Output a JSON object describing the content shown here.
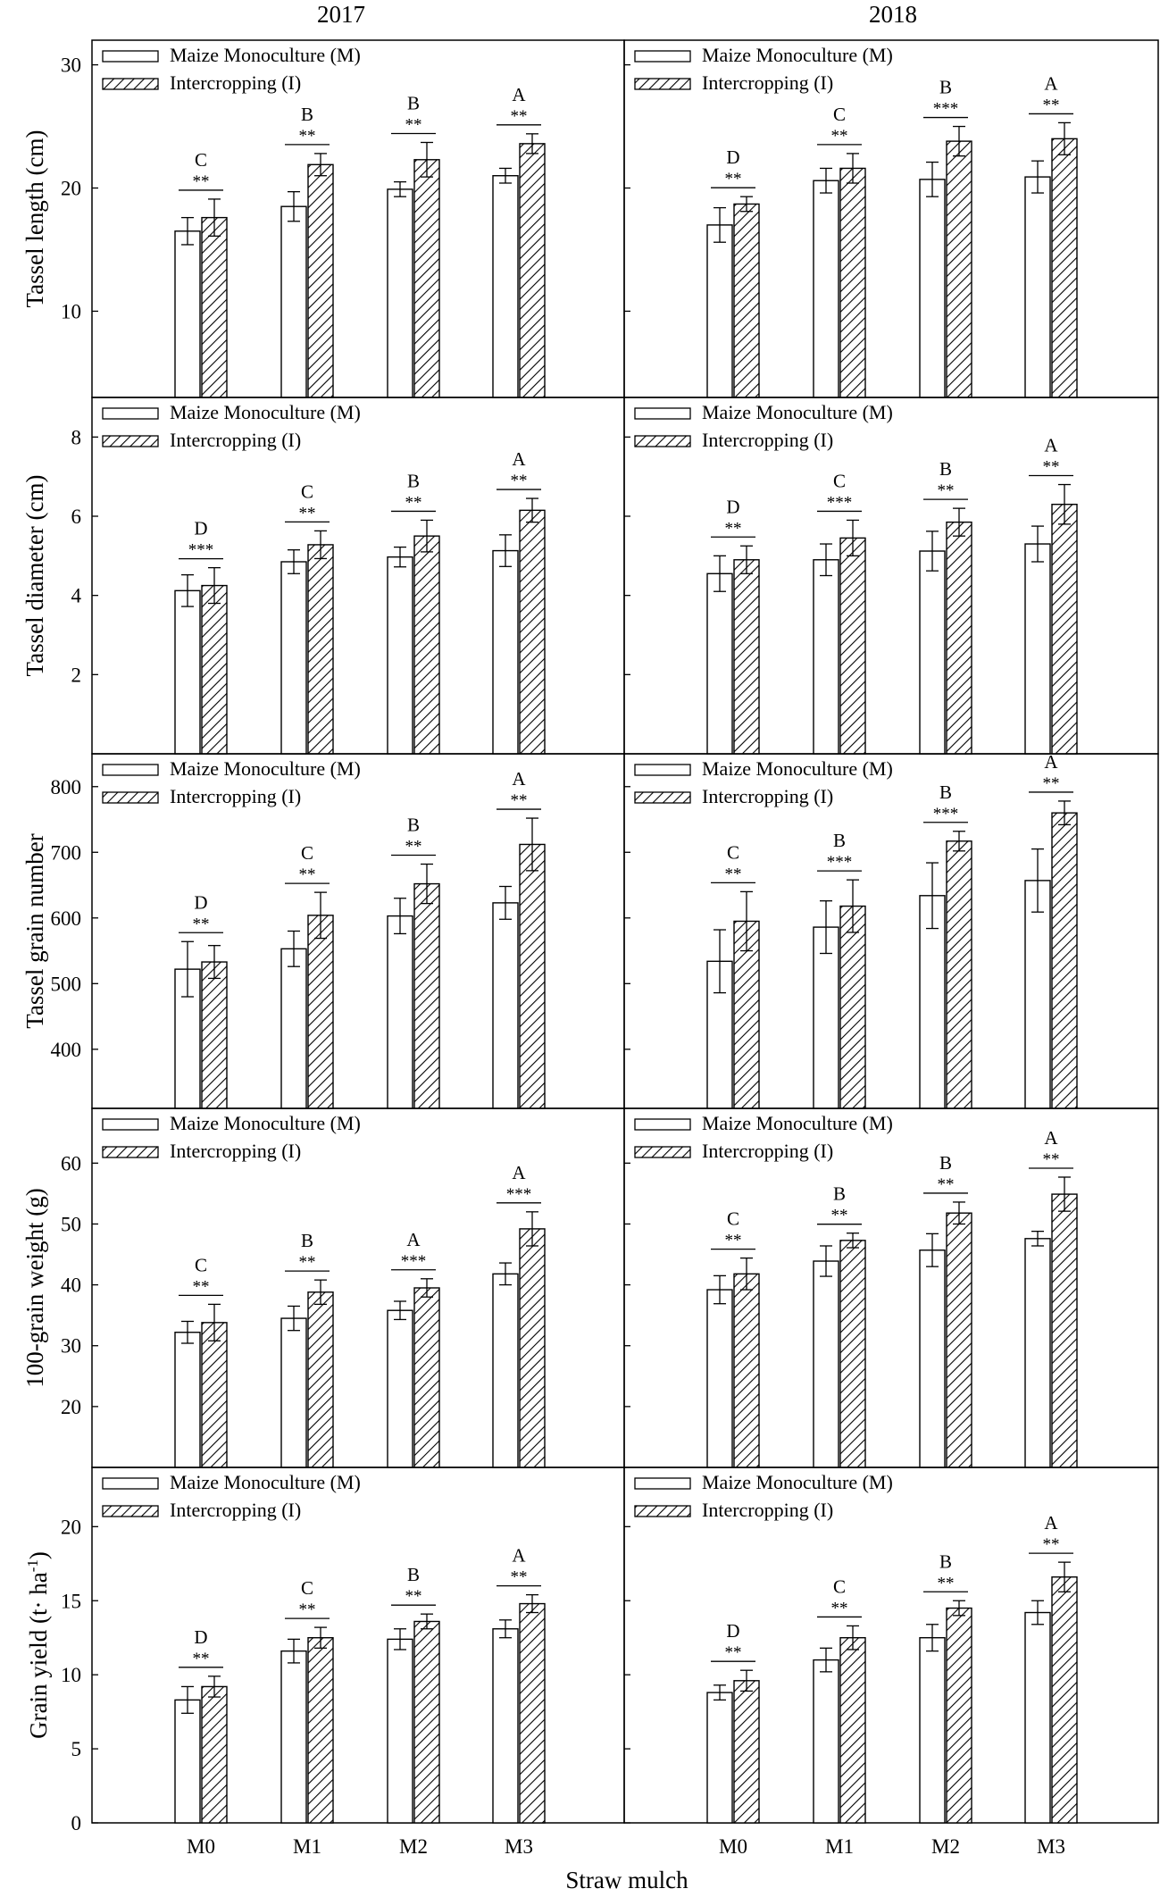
{
  "chart_data": {
    "type": "bar",
    "figure_xlabel": "Straw mulch",
    "column_titles": [
      "2017",
      "2018"
    ],
    "categories": [
      "M0",
      "M1",
      "M2",
      "M3"
    ],
    "legend": {
      "position": "top-left",
      "monoculture": "Maize Monoculture (M)",
      "intercropping": "Intercropping (I)"
    },
    "colors": {
      "stroke": "#000000",
      "monoculture_fill": "#ffffff",
      "hatch": "#000000"
    },
    "rows": [
      {
        "ylabel": "Tassel length (cm)",
        "ylim": [
          3,
          32
        ],
        "yticks": [
          10,
          20,
          30
        ],
        "panels": [
          {
            "year": "2017",
            "series": [
              {
                "name": "Maize Monoculture (M)",
                "values": [
                  16.5,
                  18.5,
                  19.9,
                  21.0
                ],
                "errors": [
                  1.1,
                  1.2,
                  0.6,
                  0.6
                ]
              },
              {
                "name": "Intercropping (I)",
                "values": [
                  17.6,
                  21.9,
                  22.3,
                  23.6
                ],
                "errors": [
                  1.5,
                  0.9,
                  1.4,
                  0.8
                ]
              }
            ],
            "significance": [
              "**",
              "**",
              "**",
              "**"
            ],
            "letters": [
              "C",
              "B",
              "B",
              "A"
            ]
          },
          {
            "year": "2018",
            "series": [
              {
                "name": "Maize Monoculture (M)",
                "values": [
                  17.0,
                  20.6,
                  20.7,
                  20.9
                ],
                "errors": [
                  1.4,
                  1.0,
                  1.4,
                  1.3
                ]
              },
              {
                "name": "Intercropping (I)",
                "values": [
                  18.7,
                  21.6,
                  23.8,
                  24.0
                ],
                "errors": [
                  0.6,
                  1.2,
                  1.2,
                  1.3
                ]
              }
            ],
            "significance": [
              "**",
              "**",
              "***",
              "**"
            ],
            "letters": [
              "D",
              "C",
              "B",
              "A"
            ]
          }
        ]
      },
      {
        "ylabel": "Tassel diameter (cm)",
        "ylim": [
          0,
          9
        ],
        "yticks": [
          2,
          4,
          6,
          8
        ],
        "panels": [
          {
            "year": "2017",
            "series": [
              {
                "name": "Maize Monoculture (M)",
                "values": [
                  4.12,
                  4.85,
                  4.97,
                  5.13
                ],
                "errors": [
                  0.4,
                  0.3,
                  0.25,
                  0.4
                ]
              },
              {
                "name": "Intercropping (I)",
                "values": [
                  4.25,
                  5.28,
                  5.5,
                  6.15
                ],
                "errors": [
                  0.45,
                  0.35,
                  0.4,
                  0.3
                ]
              }
            ],
            "significance": [
              "***",
              "**",
              "**",
              "**"
            ],
            "letters": [
              "D",
              "C",
              "B",
              "A"
            ]
          },
          {
            "year": "2018",
            "series": [
              {
                "name": "Maize Monoculture (M)",
                "values": [
                  4.55,
                  4.9,
                  5.12,
                  5.3
                ],
                "errors": [
                  0.45,
                  0.4,
                  0.5,
                  0.45
                ]
              },
              {
                "name": "Intercropping (I)",
                "values": [
                  4.9,
                  5.45,
                  5.85,
                  6.3
                ],
                "errors": [
                  0.35,
                  0.45,
                  0.35,
                  0.5
                ]
              }
            ],
            "significance": [
              "**",
              "***",
              "**",
              "**"
            ],
            "letters": [
              "D",
              "C",
              "B",
              "A"
            ]
          }
        ]
      },
      {
        "ylabel": "Tassel grain number",
        "ylim": [
          310,
          850
        ],
        "yticks": [
          400,
          500,
          600,
          700,
          800
        ],
        "panels": [
          {
            "year": "2017",
            "series": [
              {
                "name": "Maize Monoculture (M)",
                "values": [
                  522,
                  553,
                  603,
                  623
                ],
                "errors": [
                  42,
                  27,
                  27,
                  25
                ]
              },
              {
                "name": "Intercropping (I)",
                "values": [
                  533,
                  604,
                  652,
                  712
                ],
                "errors": [
                  25,
                  35,
                  30,
                  40
                ]
              }
            ],
            "significance": [
              "**",
              "**",
              "**",
              "**"
            ],
            "letters": [
              "D",
              "C",
              "B",
              "A"
            ]
          },
          {
            "year": "2018",
            "series": [
              {
                "name": "Maize Monoculture (M)",
                "values": [
                  534,
                  586,
                  634,
                  657
                ],
                "errors": [
                  48,
                  40,
                  50,
                  48
                ]
              },
              {
                "name": "Intercropping (I)",
                "values": [
                  595,
                  618,
                  717,
                  760
                ],
                "errors": [
                  45,
                  40,
                  15,
                  18
                ]
              }
            ],
            "significance": [
              "**",
              "***",
              "***",
              "**"
            ],
            "letters": [
              "C",
              "B",
              "B",
              "A"
            ]
          }
        ]
      },
      {
        "ylabel": "100-grain weight (g)",
        "ylim": [
          10,
          69
        ],
        "yticks": [
          20,
          30,
          40,
          50,
          60
        ],
        "panels": [
          {
            "year": "2017",
            "series": [
              {
                "name": "Maize Monoculture (M)",
                "values": [
                  32.2,
                  34.5,
                  35.8,
                  41.8
                ],
                "errors": [
                  1.8,
                  2.0,
                  1.5,
                  1.8
                ]
              },
              {
                "name": "Intercropping (I)",
                "values": [
                  33.8,
                  38.8,
                  39.5,
                  49.2
                ],
                "errors": [
                  3.0,
                  2.0,
                  1.5,
                  2.8
                ]
              }
            ],
            "significance": [
              "**",
              "**",
              "***",
              "***"
            ],
            "letters": [
              "C",
              "B",
              "A",
              "A"
            ]
          },
          {
            "year": "2018",
            "series": [
              {
                "name": "Maize Monoculture (M)",
                "values": [
                  39.2,
                  43.9,
                  45.7,
                  47.6
                ],
                "errors": [
                  2.3,
                  2.5,
                  2.7,
                  1.2
                ]
              },
              {
                "name": "Intercropping (I)",
                "values": [
                  41.8,
                  47.3,
                  51.8,
                  54.9
                ],
                "errors": [
                  2.6,
                  1.2,
                  1.8,
                  2.8
                ]
              }
            ],
            "significance": [
              "**",
              "**",
              "**",
              "**"
            ],
            "letters": [
              "C",
              "B",
              "B",
              "A"
            ]
          }
        ]
      },
      {
        "ylabel": "Grain yield (t· ha-1)",
        "ylim": [
          0,
          24
        ],
        "yticks": [
          0,
          5,
          10,
          15,
          20
        ],
        "panels": [
          {
            "year": "2017",
            "series": [
              {
                "name": "Maize Monoculture (M)",
                "values": [
                  8.3,
                  11.6,
                  12.4,
                  13.1
                ],
                "errors": [
                  0.9,
                  0.8,
                  0.7,
                  0.6
                ]
              },
              {
                "name": "Intercropping (I)",
                "values": [
                  9.2,
                  12.5,
                  13.6,
                  14.8
                ],
                "errors": [
                  0.7,
                  0.7,
                  0.5,
                  0.6
                ]
              }
            ],
            "significance": [
              "**",
              "**",
              "**",
              "**"
            ],
            "letters": [
              "D",
              "C",
              "B",
              "A"
            ]
          },
          {
            "year": "2018",
            "series": [
              {
                "name": "Maize Monoculture (M)",
                "values": [
                  8.8,
                  11.0,
                  12.5,
                  14.2
                ],
                "errors": [
                  0.5,
                  0.8,
                  0.9,
                  0.8
                ]
              },
              {
                "name": "Intercropping (I)",
                "values": [
                  9.6,
                  12.5,
                  14.5,
                  16.6
                ],
                "errors": [
                  0.7,
                  0.8,
                  0.5,
                  1.0
                ]
              }
            ],
            "significance": [
              "**",
              "**",
              "**",
              "**"
            ],
            "letters": [
              "D",
              "C",
              "B",
              "A"
            ]
          }
        ]
      }
    ]
  }
}
